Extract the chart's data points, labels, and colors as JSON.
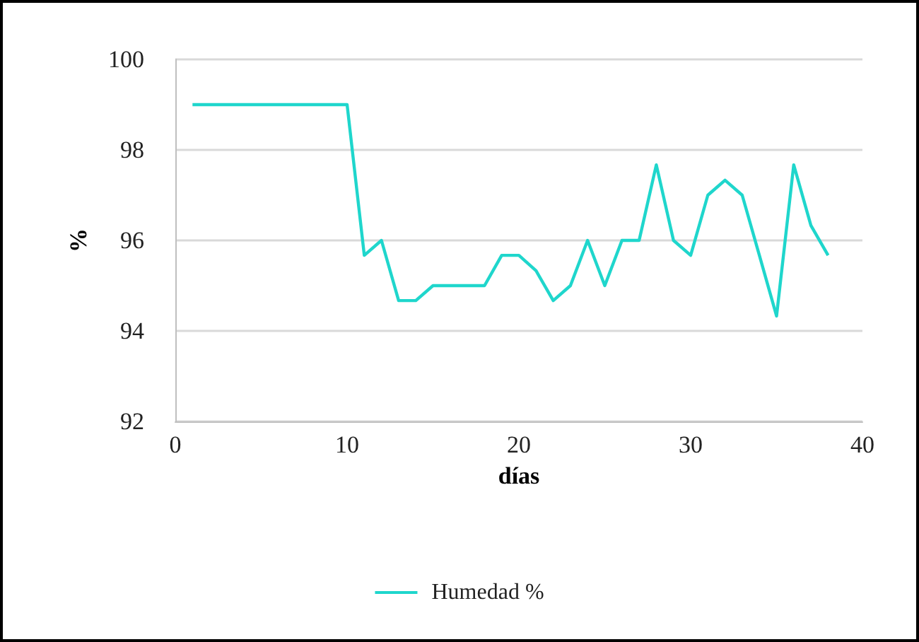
{
  "chart_data": {
    "type": "line",
    "xlabel": "días",
    "ylabel": "%",
    "x": [
      1,
      2,
      3,
      4,
      5,
      6,
      7,
      8,
      9,
      10,
      11,
      12,
      13,
      14,
      15,
      16,
      17,
      18,
      19,
      20,
      21,
      22,
      23,
      24,
      25,
      26,
      27,
      28,
      29,
      30,
      31,
      32,
      33,
      34,
      35,
      36,
      37,
      38
    ],
    "series": [
      {
        "name": "Humedad %",
        "color": "#1fd6cc",
        "values": [
          99,
          99,
          99,
          99,
          99,
          99,
          99,
          99,
          99,
          99,
          95.67,
          96,
          94.67,
          94.67,
          95,
          95,
          95,
          95,
          95.67,
          95.67,
          95.33,
          94.67,
          95,
          96,
          95,
          96,
          96,
          97.67,
          96,
          95.67,
          97,
          97.33,
          97,
          95.67,
          94.33,
          97.67,
          96.33,
          95.67
        ]
      }
    ],
    "xlim": [
      0,
      40
    ],
    "xticks": [
      0,
      10,
      20,
      30,
      40
    ],
    "ylim": [
      92,
      100
    ],
    "yticks": [
      92,
      94,
      96,
      98,
      100
    ],
    "grid": "y",
    "legend": "bottom",
    "marker": "none",
    "line_style": "solid"
  }
}
